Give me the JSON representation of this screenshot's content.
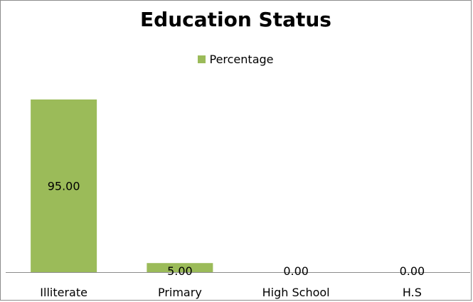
{
  "chart_data": {
    "type": "bar",
    "title": "Education Status",
    "categories": [
      "Illiterate",
      "Primary",
      "High School",
      "H.S"
    ],
    "series": [
      {
        "name": "Percentage",
        "values": [
          95.0,
          5.0,
          0.0,
          0.0
        ],
        "color": "#9bbb59"
      }
    ],
    "data_labels": [
      "95.00",
      "5.00",
      "0.00",
      "0.00"
    ],
    "legend_position": "top",
    "gridlines": false
  }
}
